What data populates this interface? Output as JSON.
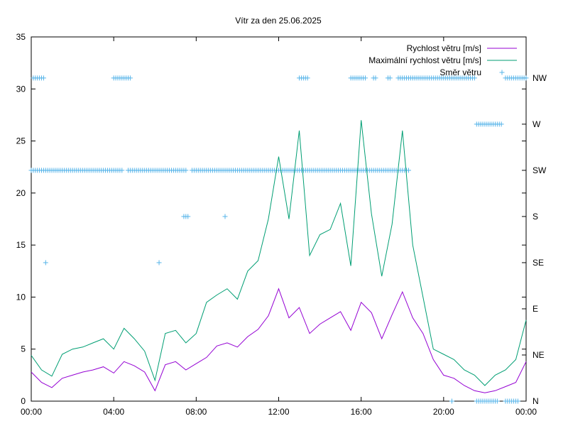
{
  "chart_data": {
    "type": "line",
    "title": "Vítr za den 25.06.2025",
    "x_ticks": [
      "00:00",
      "04:00",
      "08:00",
      "12:00",
      "16:00",
      "20:00",
      "00:00"
    ],
    "y_ticks": [
      "0",
      "5",
      "10",
      "15",
      "20",
      "25",
      "30",
      "35"
    ],
    "ylim": [
      0,
      35
    ],
    "xlim_hours": [
      0,
      24
    ],
    "y2_ticks": [
      "N",
      "NE",
      "E",
      "SE",
      "S",
      "SW",
      "W",
      "NW"
    ],
    "grid": false,
    "legend_position": "top-right",
    "series": [
      {
        "name": "Rychlost větru [m/s]",
        "color": "#9400d3",
        "x_hours": [
          0,
          0.5,
          1,
          1.5,
          2,
          2.5,
          3,
          3.5,
          4,
          4.5,
          5,
          5.5,
          6,
          6.5,
          7,
          7.5,
          8,
          8.5,
          9,
          9.5,
          10,
          10.5,
          11,
          11.5,
          12,
          12.5,
          13,
          13.5,
          14,
          14.5,
          15,
          15.5,
          16,
          16.5,
          17,
          17.5,
          18,
          18.5,
          19,
          19.5,
          20,
          20.5,
          21,
          21.5,
          22,
          22.5,
          23,
          23.5,
          24
        ],
        "values": [
          2.8,
          1.8,
          1.3,
          2.2,
          2.5,
          2.8,
          3.0,
          3.3,
          2.7,
          3.8,
          3.4,
          2.8,
          1.0,
          3.5,
          3.8,
          3.0,
          3.6,
          4.2,
          5.3,
          5.6,
          5.2,
          6.2,
          6.9,
          8.2,
          10.8,
          8.0,
          9.0,
          6.5,
          7.4,
          8.0,
          8.6,
          6.8,
          9.5,
          8.5,
          6.0,
          8.3,
          10.5,
          8.0,
          6.5,
          4.0,
          2.5,
          2.2,
          1.5,
          1.0,
          0.8,
          1.0,
          1.4,
          1.8,
          3.8
        ]
      },
      {
        "name": "Maximální rychlost větru [m/s]",
        "color": "#009e73",
        "x_hours": [
          0,
          0.5,
          1,
          1.5,
          2,
          2.5,
          3,
          3.5,
          4,
          4.5,
          5,
          5.5,
          6,
          6.5,
          7,
          7.5,
          8,
          8.5,
          9,
          9.5,
          10,
          10.5,
          11,
          11.5,
          12,
          12.5,
          13,
          13.5,
          14,
          14.5,
          15,
          15.5,
          16,
          16.5,
          17,
          17.5,
          18,
          18.5,
          19,
          19.5,
          20,
          20.5,
          21,
          21.5,
          22,
          22.5,
          23,
          23.5,
          24
        ],
        "values": [
          4.4,
          3.0,
          2.4,
          4.5,
          5.0,
          5.2,
          5.6,
          6.0,
          5.0,
          7.0,
          6.0,
          4.8,
          2.0,
          6.5,
          6.8,
          5.6,
          6.5,
          9.5,
          10.2,
          10.8,
          9.8,
          12.5,
          13.5,
          17.5,
          23.5,
          17.5,
          26.0,
          14.0,
          16.0,
          16.5,
          19.0,
          13.0,
          27.0,
          18.0,
          12.0,
          17.0,
          26.0,
          15.0,
          10.0,
          5.0,
          4.5,
          4.0,
          3.0,
          2.5,
          1.5,
          2.5,
          3.0,
          4.0,
          7.8
        ]
      },
      {
        "name": "Směr větru",
        "color": "#56b4e9",
        "segments": [
          {
            "from_hours": 0.1,
            "to_hours": 0.6,
            "direction": "NW"
          },
          {
            "from_hours": 4.0,
            "to_hours": 4.8,
            "direction": "NW"
          },
          {
            "from_hours": 13.0,
            "to_hours": 13.4,
            "direction": "NW"
          },
          {
            "from_hours": 15.5,
            "to_hours": 16.2,
            "direction": "NW"
          },
          {
            "from_hours": 16.6,
            "to_hours": 16.7,
            "direction": "NW"
          },
          {
            "from_hours": 17.3,
            "to_hours": 17.4,
            "direction": "NW"
          },
          {
            "from_hours": 17.8,
            "to_hours": 21.5,
            "direction": "NW"
          },
          {
            "from_hours": 23.0,
            "to_hours": 24.0,
            "direction": "NW"
          },
          {
            "from_hours": 21.6,
            "to_hours": 22.8,
            "direction": "W"
          },
          {
            "from_hours": 0.0,
            "to_hours": 4.2,
            "direction": "SW"
          },
          {
            "from_hours": 4.3,
            "to_hours": 4.4,
            "direction": "SW"
          },
          {
            "from_hours": 4.7,
            "to_hours": 7.5,
            "direction": "SW"
          },
          {
            "from_hours": 7.8,
            "to_hours": 18.3,
            "direction": "SW"
          },
          {
            "from_hours": 7.4,
            "to_hours": 7.6,
            "direction": "S"
          },
          {
            "from_hours": 9.4,
            "to_hours": 9.4,
            "direction": "S"
          },
          {
            "from_hours": 0.7,
            "to_hours": 0.7,
            "direction": "SE"
          },
          {
            "from_hours": 6.2,
            "to_hours": 6.2,
            "direction": "SE"
          },
          {
            "from_hours": 20.4,
            "to_hours": 20.4,
            "direction": "N"
          },
          {
            "from_hours": 21.6,
            "to_hours": 22.6,
            "direction": "N"
          },
          {
            "from_hours": 23.0,
            "to_hours": 23.6,
            "direction": "N"
          }
        ]
      }
    ]
  }
}
